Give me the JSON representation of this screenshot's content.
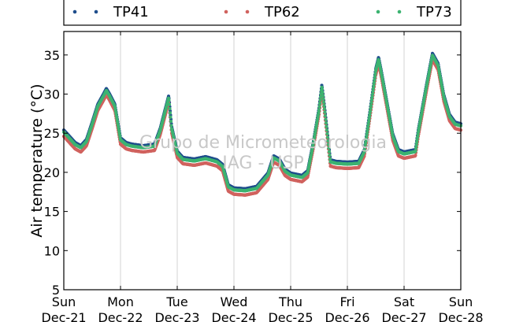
{
  "chart_data": {
    "type": "scatter",
    "title": "",
    "xlabel": "",
    "ylabel": "Air temperature (°C)",
    "ylim": [
      5,
      38
    ],
    "yticks": [
      5,
      10,
      15,
      20,
      25,
      30,
      35
    ],
    "x_ticks": [
      {
        "day": "Sun",
        "date": "Dec-21"
      },
      {
        "day": "Mon",
        "date": "Dec-22"
      },
      {
        "day": "Tue",
        "date": "Dec-23"
      },
      {
        "day": "Wed",
        "date": "Dec-24"
      },
      {
        "day": "Thu",
        "date": "Dec-25"
      },
      {
        "day": "Fri",
        "date": "Dec-26"
      },
      {
        "day": "Sat",
        "date": "Dec-27"
      },
      {
        "day": "Sun",
        "date": "Dec-28"
      }
    ],
    "x_unit": "days since Dec-21 00:00",
    "grid": "vertical",
    "legend": {
      "placement": "top",
      "columns": 3
    },
    "watermark": [
      "Grupo de Micrometeorologia",
      "IAG - USP"
    ],
    "series": [
      {
        "name": "TP41",
        "color": "#1f4e8c",
        "offset": 0.4,
        "points": [
          [
            0,
            25.0
          ],
          [
            0.1,
            24.2
          ],
          [
            0.2,
            23.4
          ],
          [
            0.3,
            23.0
          ],
          [
            0.4,
            23.8
          ],
          [
            0.5,
            26.0
          ],
          [
            0.6,
            28.3
          ],
          [
            0.7,
            29.6
          ],
          [
            0.75,
            30.3
          ],
          [
            0.8,
            29.7
          ],
          [
            0.9,
            28.3
          ],
          [
            1.0,
            24.0
          ],
          [
            1.1,
            23.4
          ],
          [
            1.2,
            23.2
          ],
          [
            1.4,
            23.0
          ],
          [
            1.6,
            23.2
          ],
          [
            1.7,
            25.2
          ],
          [
            1.8,
            28.0
          ],
          [
            1.85,
            29.4
          ],
          [
            1.9,
            25.5
          ],
          [
            2.0,
            22.3
          ],
          [
            2.1,
            21.5
          ],
          [
            2.3,
            21.3
          ],
          [
            2.5,
            21.6
          ],
          [
            2.7,
            21.2
          ],
          [
            2.8,
            20.6
          ],
          [
            2.9,
            18.0
          ],
          [
            3.0,
            17.6
          ],
          [
            3.2,
            17.5
          ],
          [
            3.4,
            17.8
          ],
          [
            3.6,
            19.5
          ],
          [
            3.7,
            21.7
          ],
          [
            3.8,
            21.3
          ],
          [
            3.9,
            20.0
          ],
          [
            4.0,
            19.5
          ],
          [
            4.2,
            19.2
          ],
          [
            4.3,
            19.8
          ],
          [
            4.4,
            23.5
          ],
          [
            4.5,
            27.8
          ],
          [
            4.55,
            30.8
          ],
          [
            4.6,
            27.8
          ],
          [
            4.7,
            21.2
          ],
          [
            4.8,
            21.0
          ],
          [
            5.0,
            20.9
          ],
          [
            5.2,
            21.0
          ],
          [
            5.3,
            22.5
          ],
          [
            5.4,
            27.5
          ],
          [
            5.5,
            32.8
          ],
          [
            5.55,
            34.3
          ],
          [
            5.6,
            32.5
          ],
          [
            5.7,
            28.5
          ],
          [
            5.8,
            24.5
          ],
          [
            5.9,
            22.5
          ],
          [
            6.0,
            22.2
          ],
          [
            6.2,
            22.5
          ],
          [
            6.25,
            25.0
          ],
          [
            6.4,
            31.0
          ],
          [
            6.5,
            34.8
          ],
          [
            6.6,
            33.5
          ],
          [
            6.7,
            29.5
          ],
          [
            6.8,
            27.0
          ],
          [
            6.9,
            26.0
          ],
          [
            7.0,
            25.8
          ]
        ]
      },
      {
        "name": "TP62",
        "color": "#d0625e",
        "offset": -0.4,
        "points": [
          [
            0,
            25.0
          ],
          [
            0.1,
            24.2
          ],
          [
            0.2,
            23.4
          ],
          [
            0.3,
            23.0
          ],
          [
            0.4,
            23.8
          ],
          [
            0.5,
            26.0
          ],
          [
            0.6,
            28.3
          ],
          [
            0.7,
            29.6
          ],
          [
            0.75,
            30.3
          ],
          [
            0.8,
            29.7
          ],
          [
            0.9,
            28.3
          ],
          [
            1.0,
            24.0
          ],
          [
            1.1,
            23.4
          ],
          [
            1.2,
            23.2
          ],
          [
            1.4,
            23.0
          ],
          [
            1.6,
            23.2
          ],
          [
            1.7,
            25.2
          ],
          [
            1.8,
            28.0
          ],
          [
            1.85,
            29.4
          ],
          [
            1.9,
            25.5
          ],
          [
            2.0,
            22.3
          ],
          [
            2.1,
            21.5
          ],
          [
            2.3,
            21.3
          ],
          [
            2.5,
            21.6
          ],
          [
            2.7,
            21.2
          ],
          [
            2.8,
            20.6
          ],
          [
            2.9,
            18.0
          ],
          [
            3.0,
            17.6
          ],
          [
            3.2,
            17.5
          ],
          [
            3.4,
            17.8
          ],
          [
            3.6,
            19.5
          ],
          [
            3.7,
            21.7
          ],
          [
            3.8,
            21.3
          ],
          [
            3.9,
            20.0
          ],
          [
            4.0,
            19.5
          ],
          [
            4.2,
            19.2
          ],
          [
            4.3,
            19.8
          ],
          [
            4.4,
            23.5
          ],
          [
            4.5,
            27.8
          ],
          [
            4.55,
            30.8
          ],
          [
            4.6,
            27.8
          ],
          [
            4.7,
            21.2
          ],
          [
            4.8,
            21.0
          ],
          [
            5.0,
            20.9
          ],
          [
            5.2,
            21.0
          ],
          [
            5.3,
            22.5
          ],
          [
            5.4,
            27.5
          ],
          [
            5.5,
            32.8
          ],
          [
            5.55,
            34.3
          ],
          [
            5.6,
            32.5
          ],
          [
            5.7,
            28.5
          ],
          [
            5.8,
            24.5
          ],
          [
            5.9,
            22.5
          ],
          [
            6.0,
            22.2
          ],
          [
            6.2,
            22.5
          ],
          [
            6.25,
            25.0
          ],
          [
            6.4,
            31.0
          ],
          [
            6.5,
            34.8
          ],
          [
            6.6,
            33.5
          ],
          [
            6.7,
            29.5
          ],
          [
            6.8,
            27.0
          ],
          [
            6.9,
            26.0
          ],
          [
            7.0,
            25.8
          ]
        ]
      },
      {
        "name": "TP73",
        "color": "#3cb371",
        "offset": 0.15,
        "points": [
          [
            0,
            25.0
          ],
          [
            0.1,
            24.2
          ],
          [
            0.2,
            23.4
          ],
          [
            0.3,
            23.0
          ],
          [
            0.4,
            23.8
          ],
          [
            0.5,
            26.0
          ],
          [
            0.6,
            28.3
          ],
          [
            0.7,
            29.6
          ],
          [
            0.75,
            30.3
          ],
          [
            0.8,
            29.7
          ],
          [
            0.9,
            28.3
          ],
          [
            1.0,
            24.0
          ],
          [
            1.1,
            23.4
          ],
          [
            1.2,
            23.2
          ],
          [
            1.4,
            23.0
          ],
          [
            1.6,
            23.2
          ],
          [
            1.7,
            25.2
          ],
          [
            1.8,
            28.0
          ],
          [
            1.85,
            29.4
          ],
          [
            1.9,
            25.5
          ],
          [
            2.0,
            22.3
          ],
          [
            2.1,
            21.5
          ],
          [
            2.3,
            21.3
          ],
          [
            2.5,
            21.6
          ],
          [
            2.7,
            21.2
          ],
          [
            2.8,
            20.6
          ],
          [
            2.9,
            18.0
          ],
          [
            3.0,
            17.6
          ],
          [
            3.2,
            17.5
          ],
          [
            3.4,
            17.8
          ],
          [
            3.6,
            19.5
          ],
          [
            3.7,
            21.7
          ],
          [
            3.8,
            21.3
          ],
          [
            3.9,
            20.0
          ],
          [
            4.0,
            19.5
          ],
          [
            4.2,
            19.2
          ],
          [
            4.3,
            19.8
          ],
          [
            4.4,
            23.5
          ],
          [
            4.5,
            27.8
          ],
          [
            4.55,
            30.8
          ],
          [
            4.6,
            27.8
          ],
          [
            4.7,
            21.2
          ],
          [
            4.8,
            21.0
          ],
          [
            5.0,
            20.9
          ],
          [
            5.2,
            21.0
          ],
          [
            5.3,
            22.5
          ],
          [
            5.4,
            27.5
          ],
          [
            5.5,
            32.8
          ],
          [
            5.55,
            34.3
          ],
          [
            5.6,
            32.5
          ],
          [
            5.7,
            28.5
          ],
          [
            5.8,
            24.5
          ],
          [
            5.9,
            22.5
          ],
          [
            6.0,
            22.2
          ],
          [
            6.2,
            22.5
          ],
          [
            6.25,
            25.0
          ],
          [
            6.4,
            31.0
          ],
          [
            6.5,
            34.8
          ],
          [
            6.6,
            33.5
          ],
          [
            6.7,
            29.5
          ],
          [
            6.8,
            27.0
          ],
          [
            6.9,
            26.0
          ],
          [
            7.0,
            25.8
          ]
        ]
      }
    ]
  }
}
